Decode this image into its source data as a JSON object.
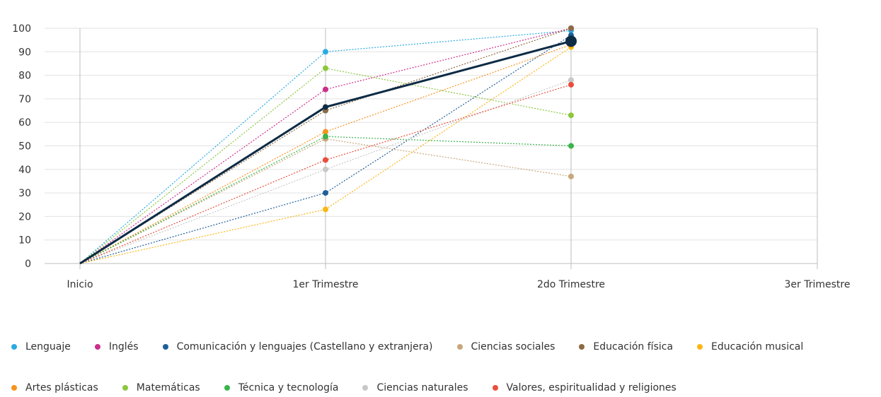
{
  "chart_data": {
    "type": "line",
    "categories": [
      "Inicio",
      "1er Trimestre",
      "2do Trimestre",
      "3er Trimestre"
    ],
    "ylim": [
      0,
      100
    ],
    "yticks": [
      0,
      10,
      20,
      30,
      40,
      50,
      60,
      70,
      80,
      90,
      100
    ],
    "grid": true,
    "legend_position": "bottom",
    "series": [
      {
        "name": "Lenguaje",
        "color": "#29abe2",
        "values": [
          0,
          90,
          99,
          null
        ]
      },
      {
        "name": "Inglés",
        "color": "#cc2e8c",
        "values": [
          0,
          74,
          100,
          null
        ]
      },
      {
        "name": "Comunicación y lenguajes (Castellano y extranjera)",
        "color": "#1f5f99",
        "values": [
          0,
          30,
          97,
          null
        ]
      },
      {
        "name": "Ciencias sociales",
        "color": "#c9a77c",
        "values": [
          0,
          53,
          37,
          null
        ]
      },
      {
        "name": "Educación física",
        "color": "#8c6a43",
        "values": [
          0,
          65,
          100,
          null
        ]
      },
      {
        "name": "Educación musical",
        "color": "#fbb715",
        "values": [
          0,
          23,
          92,
          null
        ]
      },
      {
        "name": "Artes plásticas",
        "color": "#f7941d",
        "values": [
          0,
          56,
          93,
          null
        ]
      },
      {
        "name": "Matemáticas",
        "color": "#8dc63f",
        "values": [
          0,
          83,
          63,
          null
        ]
      },
      {
        "name": "Técnica y tecnología",
        "color": "#39b54a",
        "values": [
          0,
          54,
          50,
          null
        ]
      },
      {
        "name": "Ciencias naturales",
        "color": "#c8c8c8",
        "values": [
          0,
          40,
          78,
          null
        ]
      },
      {
        "name": "Valores, espiritualidad y religiones",
        "color": "#e94e3c",
        "values": [
          0,
          44,
          76,
          null
        ]
      }
    ],
    "average": {
      "color": "#0d2b45",
      "values": [
        0,
        66.5,
        94.5,
        null
      ]
    }
  }
}
